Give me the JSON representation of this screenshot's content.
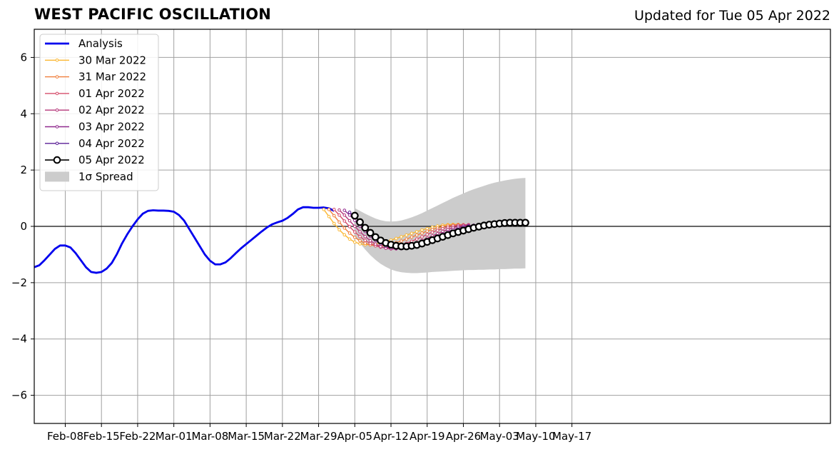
{
  "page": {
    "title": "WEST PACIFIC OSCILLATION",
    "updated": "Updated for Tue 05 Apr 2022"
  },
  "chart_data": {
    "type": "line",
    "title": "WEST PACIFIC OSCILLATION",
    "subtitle": "Updated for Tue 05 Apr 2022",
    "xlabel": "",
    "ylabel": "",
    "x_unit": "days since 2022-02-02",
    "xlim": [
      0,
      154
    ],
    "ylim": [
      -7,
      7
    ],
    "grid": true,
    "legend_position": "upper-left",
    "xticks": [
      {
        "x": 6,
        "label": "Feb-08"
      },
      {
        "x": 13,
        "label": "Feb-15"
      },
      {
        "x": 20,
        "label": "Feb-22"
      },
      {
        "x": 27,
        "label": "Mar-01"
      },
      {
        "x": 34,
        "label": "Mar-08"
      },
      {
        "x": 41,
        "label": "Mar-15"
      },
      {
        "x": 48,
        "label": "Mar-22"
      },
      {
        "x": 55,
        "label": "Mar-29"
      },
      {
        "x": 62,
        "label": "Apr-05"
      },
      {
        "x": 69,
        "label": "Apr-12"
      },
      {
        "x": 76,
        "label": "Apr-19"
      },
      {
        "x": 83,
        "label": "Apr-26"
      },
      {
        "x": 90,
        "label": "May-03"
      },
      {
        "x": 97,
        "label": "May-10"
      },
      {
        "x": 104,
        "label": "May-17"
      }
    ],
    "yticks": [
      {
        "y": 6,
        "label": "6"
      },
      {
        "y": 4,
        "label": "4"
      },
      {
        "y": 2,
        "label": "2"
      },
      {
        "y": 0,
        "label": "0"
      },
      {
        "y": -2,
        "label": "−2"
      },
      {
        "y": -4,
        "label": "−4"
      },
      {
        "y": -6,
        "label": "−6"
      }
    ],
    "analysis": {
      "name": "Analysis",
      "color": "#0000ee",
      "points": [
        [
          0,
          -1.45
        ],
        [
          1,
          -1.38
        ],
        [
          2,
          -1.2
        ],
        [
          3,
          -1.0
        ],
        [
          4,
          -0.8
        ],
        [
          5,
          -0.68
        ],
        [
          6,
          -0.68
        ],
        [
          7,
          -0.75
        ],
        [
          8,
          -0.95
        ],
        [
          9,
          -1.2
        ],
        [
          10,
          -1.45
        ],
        [
          11,
          -1.62
        ],
        [
          12,
          -1.65
        ],
        [
          13,
          -1.62
        ],
        [
          14,
          -1.5
        ],
        [
          15,
          -1.3
        ],
        [
          16,
          -0.98
        ],
        [
          17,
          -0.6
        ],
        [
          18,
          -0.28
        ],
        [
          19,
          0.0
        ],
        [
          20,
          0.25
        ],
        [
          21,
          0.45
        ],
        [
          22,
          0.55
        ],
        [
          23,
          0.57
        ],
        [
          24,
          0.56
        ],
        [
          25,
          0.56
        ],
        [
          26,
          0.55
        ],
        [
          27,
          0.52
        ],
        [
          28,
          0.4
        ],
        [
          29,
          0.2
        ],
        [
          30,
          -0.1
        ],
        [
          31,
          -0.4
        ],
        [
          32,
          -0.7
        ],
        [
          33,
          -1.0
        ],
        [
          34,
          -1.22
        ],
        [
          35,
          -1.35
        ],
        [
          36,
          -1.35
        ],
        [
          37,
          -1.28
        ],
        [
          38,
          -1.13
        ],
        [
          39,
          -0.95
        ],
        [
          40,
          -0.78
        ],
        [
          41,
          -0.63
        ],
        [
          42,
          -0.48
        ],
        [
          43,
          -0.33
        ],
        [
          44,
          -0.18
        ],
        [
          45,
          -0.04
        ],
        [
          46,
          0.07
        ],
        [
          47,
          0.14
        ],
        [
          48,
          0.2
        ],
        [
          49,
          0.3
        ],
        [
          50,
          0.44
        ],
        [
          51,
          0.6
        ],
        [
          52,
          0.68
        ],
        [
          53,
          0.68
        ],
        [
          54,
          0.66
        ],
        [
          55,
          0.66
        ],
        [
          56,
          0.67
        ],
        [
          57,
          0.64
        ],
        [
          58,
          0.55
        ]
      ]
    },
    "forecasts": [
      {
        "name": "30 Mar 2022",
        "color": "#fbb732",
        "start": 56,
        "values": [
          0.6,
          0.35,
          0.1,
          -0.12,
          -0.3,
          -0.45,
          -0.56,
          -0.62,
          -0.65,
          -0.65,
          -0.63,
          -0.6,
          -0.55,
          -0.49,
          -0.43,
          -0.37,
          -0.31,
          -0.25,
          -0.19,
          -0.13,
          -0.08,
          -0.03,
          0.01,
          0.04,
          0.06,
          0.07,
          0.07
        ]
      },
      {
        "name": "31 Mar 2022",
        "color": "#f07f3c",
        "start": 57,
        "values": [
          0.6,
          0.38,
          0.15,
          -0.06,
          -0.24,
          -0.39,
          -0.51,
          -0.6,
          -0.66,
          -0.69,
          -0.7,
          -0.68,
          -0.64,
          -0.58,
          -0.52,
          -0.45,
          -0.38,
          -0.31,
          -0.24,
          -0.17,
          -0.11,
          -0.06,
          -0.01,
          0.03,
          0.05,
          0.06,
          0.06
        ]
      },
      {
        "name": "01 Apr 2022",
        "color": "#d54d6b",
        "start": 58,
        "values": [
          0.6,
          0.4,
          0.19,
          -0.01,
          -0.2,
          -0.36,
          -0.5,
          -0.61,
          -0.69,
          -0.74,
          -0.76,
          -0.75,
          -0.72,
          -0.66,
          -0.6,
          -0.53,
          -0.45,
          -0.37,
          -0.29,
          -0.21,
          -0.14,
          -0.08,
          -0.03,
          0.01,
          0.04,
          0.05,
          0.06
        ]
      },
      {
        "name": "02 Apr 2022",
        "color": "#b5367a",
        "start": 59,
        "values": [
          0.58,
          0.4,
          0.2,
          0.0,
          -0.19,
          -0.36,
          -0.51,
          -0.63,
          -0.72,
          -0.78,
          -0.8,
          -0.8,
          -0.77,
          -0.72,
          -0.65,
          -0.58,
          -0.5,
          -0.42,
          -0.34,
          -0.26,
          -0.18,
          -0.11,
          -0.05,
          0.0,
          0.03,
          0.05
        ]
      },
      {
        "name": "03 Apr 2022",
        "color": "#8f2a8e",
        "start": 60,
        "values": [
          0.57,
          0.4,
          0.21,
          0.01,
          -0.18,
          -0.35,
          -0.5,
          -0.62,
          -0.71,
          -0.77,
          -0.79,
          -0.79,
          -0.76,
          -0.71,
          -0.65,
          -0.58,
          -0.5,
          -0.42,
          -0.34,
          -0.26,
          -0.19,
          -0.12,
          -0.06,
          -0.01,
          0.02,
          0.04
        ]
      },
      {
        "name": "04 Apr 2022",
        "color": "#5a1f96",
        "start": 61,
        "values": [
          0.5,
          0.35,
          0.18,
          0.0,
          -0.18,
          -0.34,
          -0.48,
          -0.6,
          -0.69,
          -0.75,
          -0.77,
          -0.77,
          -0.75,
          -0.7,
          -0.64,
          -0.57,
          -0.49,
          -0.41,
          -0.33,
          -0.25,
          -0.18,
          -0.11,
          -0.05,
          0.0,
          0.03,
          0.05
        ]
      }
    ],
    "current": {
      "name": "05 Apr 2022",
      "color": "#000000",
      "start": 62,
      "values": [
        0.38,
        0.15,
        -0.05,
        -0.23,
        -0.38,
        -0.5,
        -0.59,
        -0.65,
        -0.69,
        -0.71,
        -0.71,
        -0.69,
        -0.66,
        -0.61,
        -0.55,
        -0.49,
        -0.43,
        -0.37,
        -0.31,
        -0.25,
        -0.2,
        -0.15,
        -0.1,
        -0.05,
        -0.01,
        0.03,
        0.06,
        0.08,
        0.1,
        0.12,
        0.13,
        0.13,
        0.13,
        0.13
      ]
    },
    "spread": {
      "name": "1σ Spread",
      "color": "#cccccc",
      "start": 62,
      "upper": [
        0.65,
        0.55,
        0.45,
        0.36,
        0.28,
        0.22,
        0.18,
        0.17,
        0.18,
        0.21,
        0.26,
        0.32,
        0.39,
        0.47,
        0.56,
        0.65,
        0.74,
        0.83,
        0.92,
        1.01,
        1.09,
        1.17,
        1.25,
        1.32,
        1.38,
        1.44,
        1.5,
        1.55,
        1.59,
        1.63,
        1.66,
        1.69,
        1.71,
        1.72
      ],
      "lower": [
        -0.35,
        -0.6,
        -0.82,
        -1.02,
        -1.19,
        -1.33,
        -1.44,
        -1.53,
        -1.59,
        -1.63,
        -1.65,
        -1.66,
        -1.66,
        -1.65,
        -1.64,
        -1.62,
        -1.61,
        -1.6,
        -1.59,
        -1.58,
        -1.57,
        -1.56,
        -1.55,
        -1.55,
        -1.54,
        -1.54,
        -1.53,
        -1.53,
        -1.52,
        -1.52,
        -1.51,
        -1.5,
        -1.5,
        -1.49
      ]
    }
  }
}
